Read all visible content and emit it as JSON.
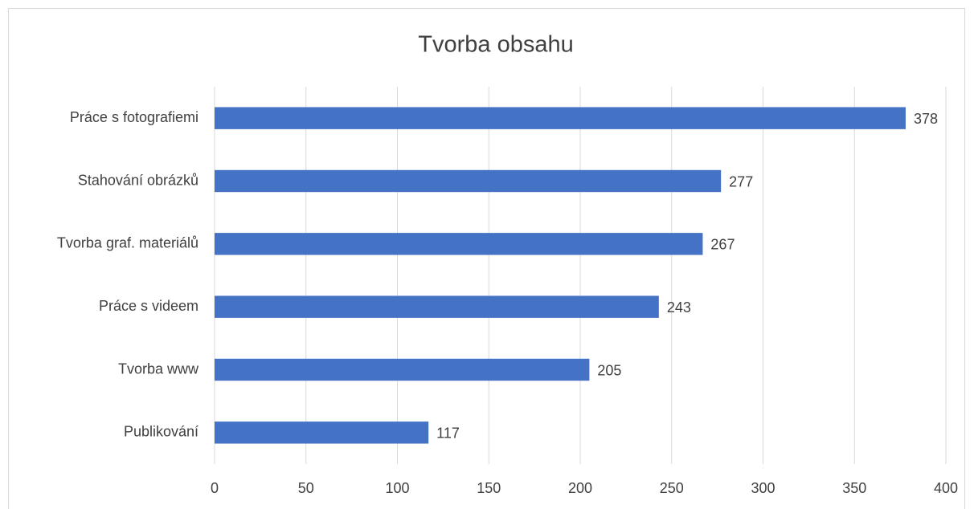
{
  "chart_data": {
    "type": "bar",
    "orientation": "horizontal",
    "title": "Tvorba obsahu",
    "categories": [
      "Práce s fotografiemi",
      "Stahování obrázků",
      "Tvorba graf. materiálů",
      "Práce s videem",
      "Tvorba www",
      "Publikování"
    ],
    "values": [
      378,
      277,
      267,
      243,
      205,
      117
    ],
    "color": "#4472c4",
    "xlim": [
      0,
      400
    ],
    "xticks": [
      0,
      50,
      100,
      150,
      200,
      250,
      300,
      350,
      400
    ],
    "grid": true
  }
}
